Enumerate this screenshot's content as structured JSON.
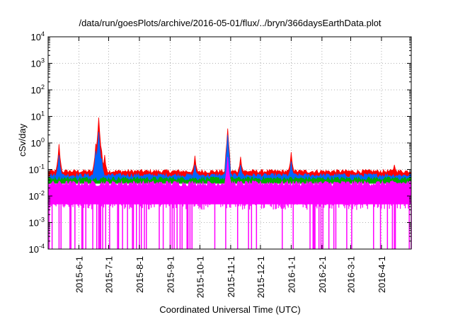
{
  "chart_data": {
    "type": "area",
    "title": "/data/run/goesPlots/archive/2016-05-01/flux/../bryn/366daysEarthData.plot",
    "xlabel": "Coordinated Universal Time (UTC)",
    "ylabel": "cSv/day",
    "xlim": [
      "2015-05-01",
      "2016-05-01"
    ],
    "ylim": [
      0.0001,
      10000
    ],
    "yscale": "log",
    "grid": true,
    "x_ticks": [
      "2015-6-1",
      "2015-7-1",
      "2015-8-1",
      "2015-9-1",
      "2015-10-1",
      "2015-11-1",
      "2015-12-1",
      "2016-1-1",
      "2016-2-1",
      "2016-3-1",
      "2016-4-1"
    ],
    "y_ticks": [
      {
        "base": "10",
        "exp": "-4"
      },
      {
        "base": "10",
        "exp": "-3"
      },
      {
        "base": "10",
        "exp": "-2"
      },
      {
        "base": "10",
        "exp": "-1"
      },
      {
        "base": "10",
        "exp": "0"
      },
      {
        "base": "10",
        "exp": "1"
      },
      {
        "base": "10",
        "exp": "2"
      },
      {
        "base": "10",
        "exp": "3"
      },
      {
        "base": "10",
        "exp": "4"
      }
    ],
    "series": [
      {
        "color": "#ff0000",
        "baseline": 0.085,
        "spikes": [
          [
            "2015-05-12",
            0.9
          ],
          [
            "2015-06-18",
            0.9
          ],
          [
            "2015-06-21",
            9.0
          ],
          [
            "2015-06-24",
            0.5
          ],
          [
            "2015-06-27",
            0.35
          ],
          [
            "2015-09-26",
            0.33
          ],
          [
            "2015-10-29",
            3.5
          ],
          [
            "2015-11-11",
            0.3
          ],
          [
            "2016-01-01",
            0.45
          ],
          [
            "2016-04-14",
            0.15
          ]
        ]
      },
      {
        "color": "#0066ff",
        "baseline": 0.06,
        "spikes": [
          [
            "2015-05-12",
            0.35
          ],
          [
            "2015-06-18",
            0.5
          ],
          [
            "2015-06-21",
            2.6
          ],
          [
            "2015-06-24",
            0.25
          ],
          [
            "2015-09-26",
            0.15
          ],
          [
            "2015-10-29",
            2.0
          ],
          [
            "2015-11-11",
            0.15
          ],
          [
            "2016-01-01",
            0.2
          ]
        ]
      },
      {
        "color": "#00aa00",
        "baseline": 0.045,
        "spikes": []
      },
      {
        "color": "#ff00ff",
        "baseline": 0.03,
        "floor": 0.005,
        "dropout_floor": 0.0001,
        "spikes": [
          [
            "2015-10-29",
            0.3
          ]
        ]
      }
    ]
  }
}
